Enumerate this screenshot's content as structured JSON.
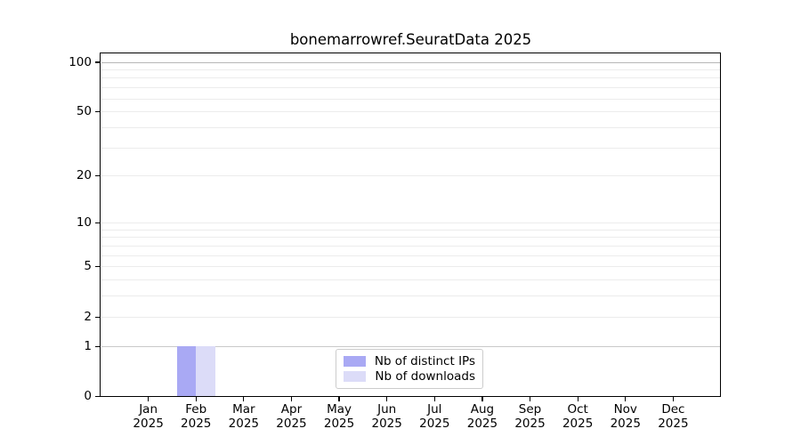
{
  "chart_data": {
    "type": "bar",
    "title": "bonemarrowref.SeuratData 2025",
    "months": [
      "Jan",
      "Feb",
      "Mar",
      "Apr",
      "May",
      "Jun",
      "Jul",
      "Aug",
      "Sep",
      "Oct",
      "Nov",
      "Dec"
    ],
    "year": "2025",
    "series": [
      {
        "name": "Nb of distinct IPs",
        "color": "#a9a9f4",
        "values": [
          0,
          1,
          0,
          0,
          0,
          0,
          0,
          0,
          0,
          0,
          0,
          0
        ]
      },
      {
        "name": "Nb of downloads",
        "color": "#dcdcf8",
        "values": [
          0,
          1,
          0,
          0,
          0,
          0,
          0,
          0,
          0,
          0,
          0,
          0
        ]
      }
    ],
    "yticks": [
      0,
      1,
      2,
      5,
      10,
      20,
      50,
      100
    ],
    "y_scale": "log10(value+1)",
    "ylim": [
      0,
      113
    ],
    "xlabel": "",
    "ylabel": "",
    "grid": "horizontal, minor+major, light gray",
    "legend_position": "bottom-center-inside",
    "grid_colors": {
      "minor": "#ececec",
      "line_at_1": "#c9c9c9",
      "line_at_100": "#b6b6b6"
    }
  }
}
